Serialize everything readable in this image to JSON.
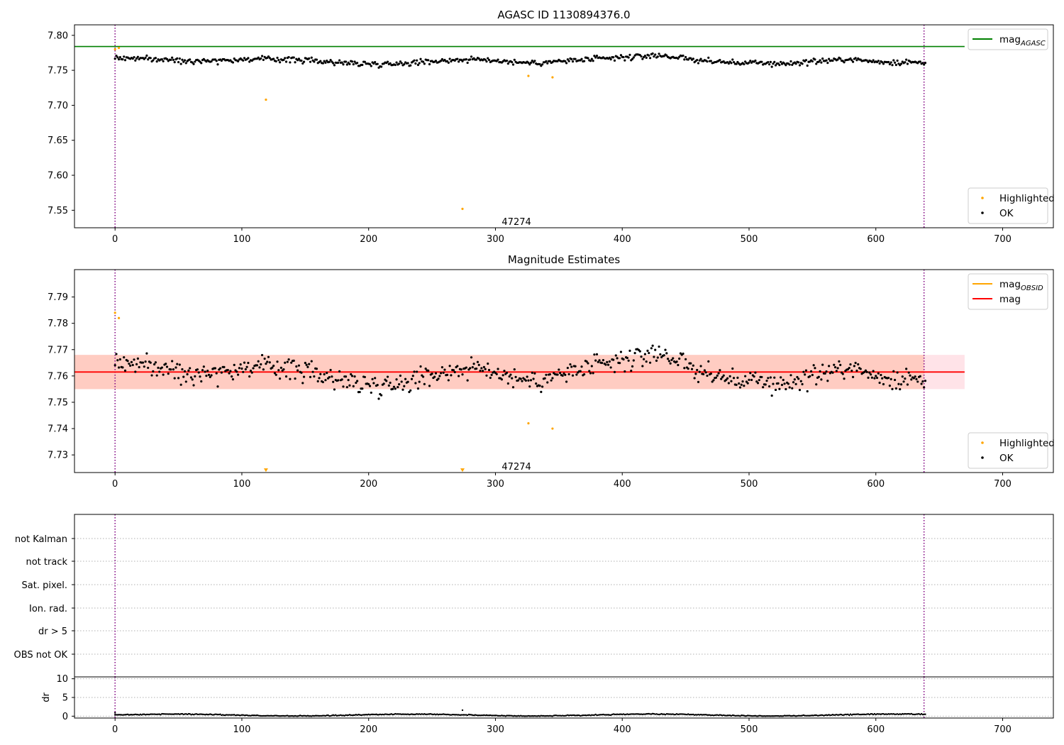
{
  "chart_data": [
    {
      "type": "scatter",
      "title": "AGASC ID 1130894376.0",
      "xlim": [
        -32,
        740
      ],
      "ylim": [
        7.525,
        7.815
      ],
      "xticks": [
        0,
        100,
        200,
        300,
        400,
        500,
        600,
        700
      ],
      "yticks": [
        7.55,
        7.6,
        7.65,
        7.7,
        7.75,
        7.8
      ],
      "ytick_labels": [
        "7.55",
        "7.60",
        "7.65",
        "7.70",
        "7.75",
        "7.80"
      ],
      "hlines": [
        {
          "name": "mag_AGASC",
          "y": 7.784,
          "x_range": [
            -32,
            670
          ],
          "color": "#008000"
        }
      ],
      "vlines": [
        {
          "x": 0,
          "color": "#800080",
          "style": "dotted"
        },
        {
          "x": 638,
          "color": "#800080",
          "style": "dotted"
        }
      ],
      "annotation": {
        "text": "47274",
        "x": 305,
        "y": 7.533
      },
      "series": [
        {
          "name": "OK",
          "color": "#000000",
          "marker": "point",
          "n": 640,
          "base": 7.764
        },
        {
          "name": "Highlighted",
          "color": "#ffa500",
          "marker": "point",
          "points": [
            [
              0,
              7.78
            ],
            [
              3,
              7.782
            ],
            [
              119,
              7.708
            ],
            [
              274,
              7.552
            ],
            [
              326,
              7.742
            ],
            [
              345,
              7.74
            ]
          ]
        }
      ],
      "legend_upper": {
        "position": "upper right",
        "entries": [
          {
            "label": "mag",
            "sub": "AGASC",
            "color": "#008000",
            "kind": "line"
          }
        ]
      },
      "legend_lower": {
        "position": "lower right",
        "entries": [
          {
            "label": "Highlighted",
            "color": "#ffa500",
            "kind": "point"
          },
          {
            "label": "OK",
            "color": "#000000",
            "kind": "point"
          }
        ]
      }
    },
    {
      "type": "scatter",
      "title": "Magnitude Estimates",
      "xlim": [
        -32,
        740
      ],
      "ylim": [
        7.7233,
        7.8004
      ],
      "xticks": [
        0,
        100,
        200,
        300,
        400,
        500,
        600,
        700
      ],
      "yticks": [
        7.73,
        7.74,
        7.75,
        7.76,
        7.77,
        7.78,
        7.79
      ],
      "ytick_labels": [
        "7.73",
        "7.74",
        "7.75",
        "7.76",
        "7.77",
        "7.78",
        "7.79"
      ],
      "hlines": [
        {
          "name": "mag",
          "y": 7.7615,
          "x_range": [
            -32,
            670
          ],
          "color": "#ff0000"
        }
      ],
      "bands": [
        {
          "y_range": [
            7.755,
            7.768
          ],
          "x_range": [
            -32,
            670
          ],
          "color": "#ffc0cb",
          "opacity": 0.45
        },
        {
          "y_range": [
            7.755,
            7.768
          ],
          "x_range": [
            -32,
            638
          ],
          "color": "#ffa07a",
          "opacity": 0.35
        }
      ],
      "vlines": [
        {
          "x": 0,
          "color": "#800080",
          "style": "dotted"
        },
        {
          "x": 638,
          "color": "#800080",
          "style": "dotted"
        }
      ],
      "annotation": {
        "text": "47274",
        "x": 305,
        "y": 7.7255
      },
      "series": [
        {
          "name": "OK",
          "color": "#000000",
          "marker": "point",
          "n": 640,
          "base": 7.7615
        },
        {
          "name": "Highlighted",
          "color": "#ffa500",
          "marker": "point",
          "points": [
            [
              0,
              7.784
            ],
            [
              3,
              7.782
            ],
            [
              326,
              7.742
            ],
            [
              345,
              7.74
            ]
          ]
        },
        {
          "name": "Highlighted (off-axis)",
          "color": "#ffa500",
          "marker": "triangle-down",
          "points": [
            [
              119,
              7.7242
            ],
            [
              274,
              7.7242
            ]
          ]
        }
      ],
      "legend_upper": {
        "position": "upper right",
        "entries": [
          {
            "label": "mag",
            "sub": "OBSID",
            "color": "#ffa500",
            "kind": "line"
          },
          {
            "label": "mag",
            "sub": "",
            "color": "#ff0000",
            "kind": "line"
          }
        ]
      },
      "legend_lower": {
        "position": "lower right",
        "entries": [
          {
            "label": "Highlighted",
            "color": "#ffa500",
            "kind": "point"
          },
          {
            "label": "OK",
            "color": "#000000",
            "kind": "point"
          }
        ]
      }
    },
    {
      "type": "scatter",
      "title": "",
      "xlim": [
        -32,
        740
      ],
      "flag_labels": [
        "not Kalman",
        "not track",
        "Sat. pixel.",
        "Ion. rad.",
        "dr > 5",
        "OBS not OK"
      ],
      "vlines": [
        {
          "x": 0,
          "color": "#800080",
          "style": "dotted"
        },
        {
          "x": 638,
          "color": "#800080",
          "style": "dotted"
        }
      ],
      "series": []
    },
    {
      "type": "scatter",
      "title": "",
      "xlim": [
        -32,
        740
      ],
      "ylim": [
        -0.5,
        10.5
      ],
      "ylabel": "dr",
      "xticks": [
        0,
        100,
        200,
        300,
        400,
        500,
        600,
        700
      ],
      "yticks": [
        0,
        5,
        10
      ],
      "ytick_labels": [
        "0",
        "5",
        "10"
      ],
      "vlines": [
        {
          "x": 0,
          "color": "#800080",
          "style": "dotted"
        },
        {
          "x": 638,
          "color": "#800080",
          "style": "dotted"
        }
      ],
      "series": [
        {
          "name": "dr",
          "color": "#000000",
          "marker": "point",
          "n": 640,
          "base": 0.3,
          "points": [
            [
              274,
              1.6
            ],
            [
              0,
              0.9
            ]
          ]
        }
      ]
    }
  ]
}
